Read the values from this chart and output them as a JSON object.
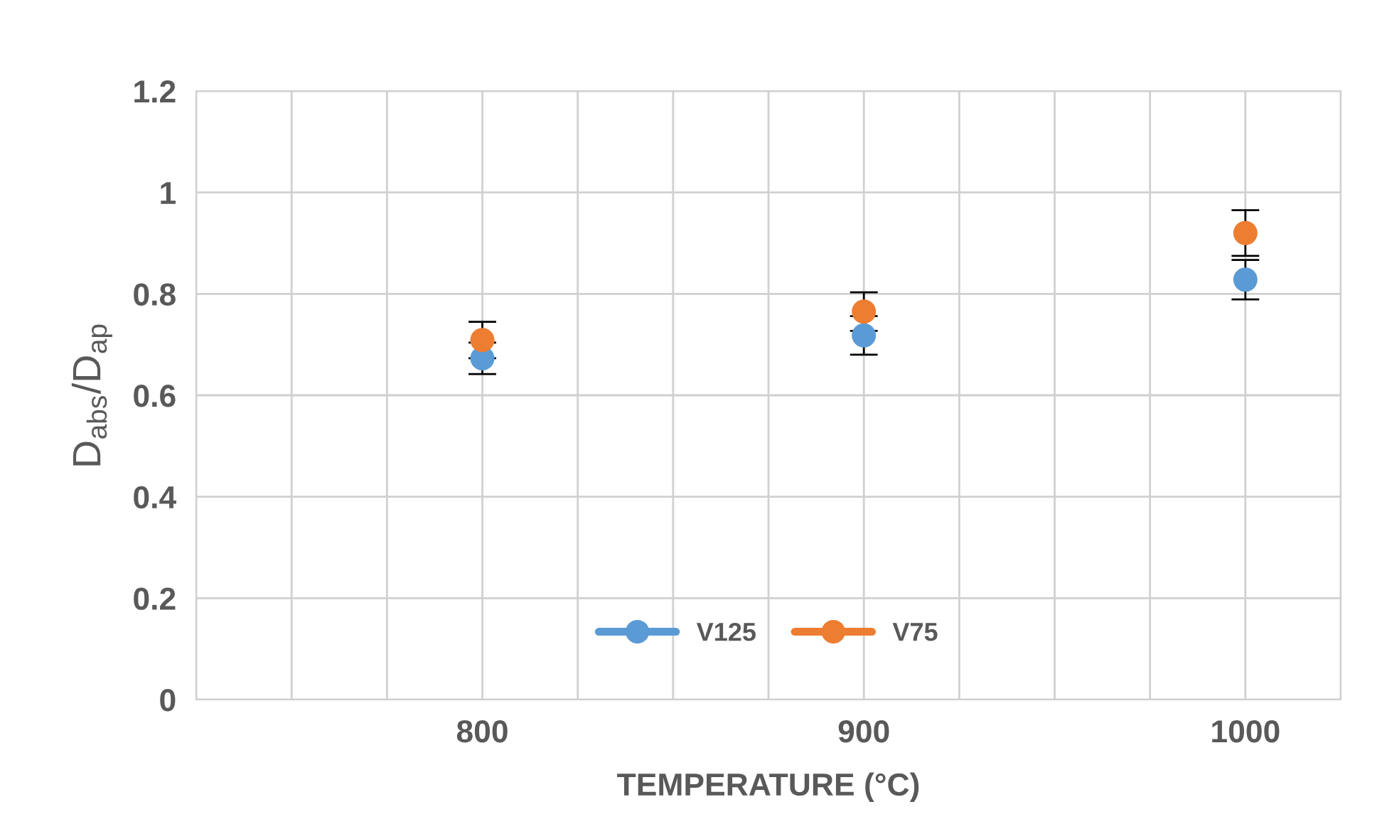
{
  "chart_data": {
    "type": "scatter",
    "xlabel": "TEMPERATURE (°C)",
    "ylabel": "D$_{abs}$/D$_{ap}$",
    "x": [
      800,
      900,
      1000
    ],
    "series": [
      {
        "name": "V125",
        "color": "#5b9bd5",
        "values": [
          0.673,
          0.718,
          0.828
        ],
        "errors": [
          0.031,
          0.038,
          0.039
        ]
      },
      {
        "name": "V75",
        "color": "#ed7d31",
        "values": [
          0.709,
          0.765,
          0.92
        ],
        "errors": [
          0.036,
          0.038,
          0.045
        ]
      }
    ],
    "xlim": [
      725,
      1025
    ],
    "xticks": [
      {
        "value": 725,
        "label": null
      },
      {
        "value": 750,
        "label": null
      },
      {
        "value": 775,
        "label": null
      },
      800,
      {
        "value": 825,
        "label": null
      },
      {
        "value": 850,
        "label": null
      },
      {
        "value": 875,
        "label": null
      },
      900,
      {
        "value": 925,
        "label": null
      },
      {
        "value": 950,
        "label": null
      },
      {
        "value": 975,
        "label": null
      },
      1000,
      {
        "value": 1025,
        "label": null
      }
    ],
    "ylim": [
      0,
      1.2
    ],
    "yticks": [
      0,
      0.2,
      0.4,
      0.6,
      0.8,
      1,
      1.2
    ],
    "grid": true,
    "legend": "bottom",
    "marker": "circle"
  }
}
